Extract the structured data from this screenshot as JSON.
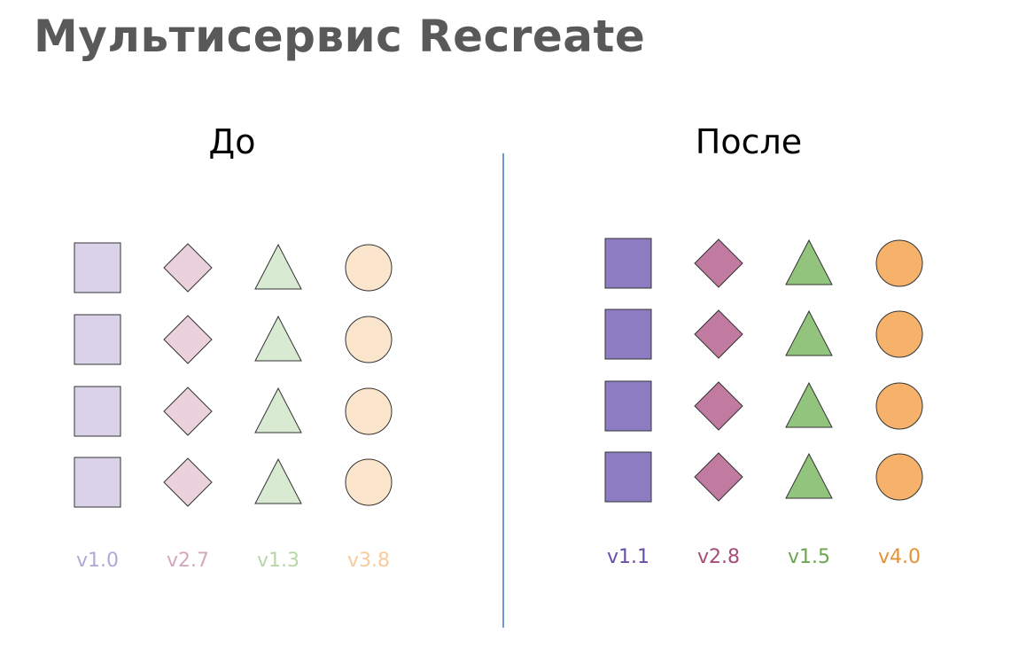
{
  "title": "Мультисервис Recreate",
  "panels": [
    {
      "heading": "До",
      "services": [
        {
          "shape": "square",
          "version": "v1.0",
          "fill": "#d9d2e9",
          "text_color": "#b4a7d6"
        },
        {
          "shape": "diamond",
          "version": "v2.7",
          "fill": "#ead1dc",
          "text_color": "#d5a6bd"
        },
        {
          "shape": "triangle",
          "version": "v1.3",
          "fill": "#d9ead3",
          "text_color": "#b6d7a8"
        },
        {
          "shape": "circle",
          "version": "v3.8",
          "fill": "#fce5cd",
          "text_color": "#f9cb9c"
        }
      ]
    },
    {
      "heading": "После",
      "services": [
        {
          "shape": "square",
          "version": "v1.1",
          "fill": "#8e7cc3",
          "text_color": "#674ea7"
        },
        {
          "shape": "diamond",
          "version": "v2.8",
          "fill": "#c27ba0",
          "text_color": "#a64d79"
        },
        {
          "shape": "triangle",
          "version": "v1.5",
          "fill": "#93c47d",
          "text_color": "#6aa84f"
        },
        {
          "shape": "circle",
          "version": "v4.0",
          "fill": "#f6b26b",
          "text_color": "#e69138"
        }
      ]
    }
  ],
  "instances_per_service": 4
}
